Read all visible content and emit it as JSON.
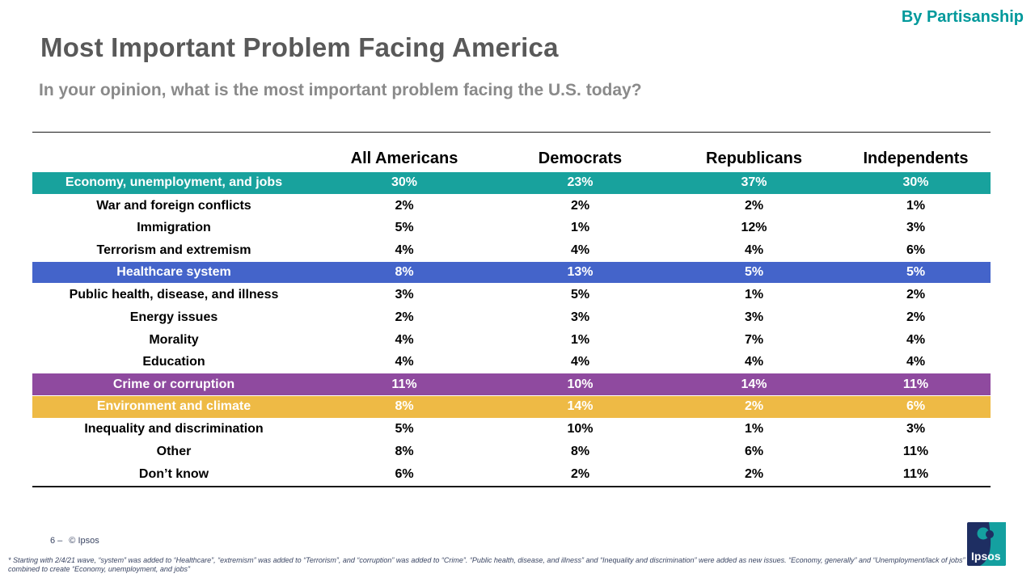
{
  "page": {
    "corner_label": "By Partisanship",
    "title": "Most Important Problem Facing America",
    "subtitle": "In your opinion, what is the most important problem facing the U.S. today?",
    "page_number": "6 –",
    "copyright": "© Ipsos",
    "footnote": "* Starting with 2/4/21 wave, “system” was added to “Healthcare”, “extremism” was added to “Terrorism”, and “corruption” was added to “Crime”. “Public health, disease, and illness” and “Inequality and discrimination” were added as new issues. “Economy, generally” and “Unemployment/lack of jobs” were combined to create “Economy, unemployment, and jobs”",
    "logo_text": "Ipsos"
  },
  "colors": {
    "accent_teal": "#00999B",
    "row_highlight_teal": "#18A29D",
    "row_highlight_blue": "#4464CA",
    "row_highlight_purple": "#8F4A9F",
    "row_highlight_gold": "#EEBA45",
    "title_gray": "#595959",
    "subtitle_gray": "#8A8A8A",
    "logo_navy": "#1E2E62"
  },
  "chart_data": {
    "type": "table",
    "title": "Most Important Problem Facing America",
    "question": "In your opinion, what is the most important problem facing the U.S. today?",
    "columns": [
      "All Americans",
      "Democrats",
      "Republicans",
      "Independents"
    ],
    "rows": [
      {
        "label": "Economy, unemployment, and jobs",
        "values": [
          "30%",
          "23%",
          "37%",
          "30%"
        ],
        "highlight": "teal"
      },
      {
        "label": "War and foreign conflicts",
        "values": [
          "2%",
          "2%",
          "2%",
          "1%"
        ],
        "highlight": null
      },
      {
        "label": "Immigration",
        "values": [
          "5%",
          "1%",
          "12%",
          "3%"
        ],
        "highlight": null
      },
      {
        "label": "Terrorism and extremism",
        "values": [
          "4%",
          "4%",
          "4%",
          "6%"
        ],
        "highlight": null
      },
      {
        "label": "Healthcare system",
        "values": [
          "8%",
          "13%",
          "5%",
          "5%"
        ],
        "highlight": "blue"
      },
      {
        "label": "Public health, disease, and illness",
        "values": [
          "3%",
          "5%",
          "1%",
          "2%"
        ],
        "highlight": null
      },
      {
        "label": "Energy issues",
        "values": [
          "2%",
          "3%",
          "3%",
          "2%"
        ],
        "highlight": null
      },
      {
        "label": "Morality",
        "values": [
          "4%",
          "1%",
          "7%",
          "4%"
        ],
        "highlight": null
      },
      {
        "label": "Education",
        "values": [
          "4%",
          "4%",
          "4%",
          "4%"
        ],
        "highlight": null
      },
      {
        "label": "Crime or corruption",
        "values": [
          "11%",
          "10%",
          "14%",
          "11%"
        ],
        "highlight": "purple"
      },
      {
        "label": "Environment and climate",
        "values": [
          "8%",
          "14%",
          "2%",
          "6%"
        ],
        "highlight": "gold"
      },
      {
        "label": "Inequality and discrimination",
        "values": [
          "5%",
          "10%",
          "1%",
          "3%"
        ],
        "highlight": null
      },
      {
        "label": "Other",
        "values": [
          "8%",
          "8%",
          "6%",
          "11%"
        ],
        "highlight": null
      },
      {
        "label": "Don’t know",
        "values": [
          "6%",
          "2%",
          "2%",
          "11%"
        ],
        "highlight": null
      }
    ]
  }
}
